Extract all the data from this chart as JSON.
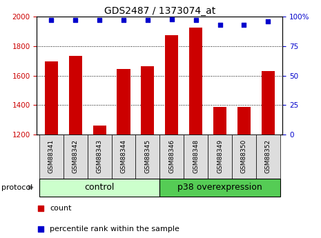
{
  "title": "GDS2487 / 1373074_at",
  "samples": [
    "GSM88341",
    "GSM88342",
    "GSM88343",
    "GSM88344",
    "GSM88345",
    "GSM88346",
    "GSM88348",
    "GSM88349",
    "GSM88350",
    "GSM88352"
  ],
  "counts": [
    1695,
    1735,
    1262,
    1645,
    1665,
    1875,
    1925,
    1385,
    1385,
    1630
  ],
  "percentile_ranks": [
    97,
    97,
    97,
    97,
    97,
    98,
    97,
    93,
    93,
    96
  ],
  "ylim_left": [
    1200,
    2000
  ],
  "ylim_right": [
    0,
    100
  ],
  "yticks_left": [
    1200,
    1400,
    1600,
    1800,
    2000
  ],
  "yticks_right": [
    0,
    25,
    50,
    75,
    100
  ],
  "bar_color": "#cc0000",
  "dot_color": "#0000cc",
  "groups": [
    {
      "label": "control",
      "start": 0,
      "end": 5,
      "color": "#ccffcc"
    },
    {
      "label": "p38 overexpression",
      "start": 5,
      "end": 10,
      "color": "#55cc55"
    }
  ],
  "protocol_label": "protocol",
  "legend_count_label": "count",
  "legend_percentile_label": "percentile rank within the sample",
  "background_color": "#ffffff",
  "sample_box_color": "#dddddd",
  "title_fontsize": 10,
  "tick_fontsize": 7.5,
  "sample_fontsize": 6.5,
  "group_fontsize": 9,
  "legend_fontsize": 8,
  "protocol_fontsize": 8
}
